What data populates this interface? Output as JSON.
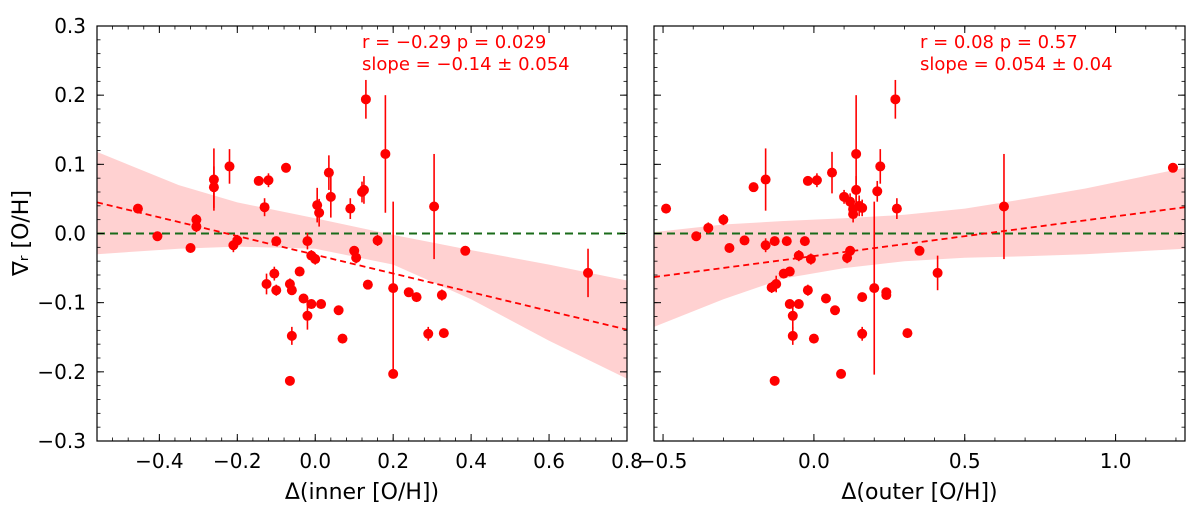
{
  "figure": {
    "ylabel": "∇ᵣ [O/H]"
  },
  "chart_data": [
    {
      "type": "scatter",
      "xlabel": "Δ(inner [O/H])",
      "ylabel": "∇ᵣ [O/H]",
      "xlim": [
        -0.56,
        0.8
      ],
      "ylim": [
        -0.3,
        0.3
      ],
      "xticks": [
        -0.4,
        -0.2,
        0.0,
        0.2,
        0.4,
        0.6,
        0.8
      ],
      "xtick_labels": [
        "−0.4",
        "−0.2",
        "0.0",
        "0.2",
        "0.4",
        "0.6",
        "0.8"
      ],
      "yticks": [
        -0.3,
        -0.2,
        -0.1,
        0.0,
        0.1,
        0.2,
        0.3
      ],
      "ytick_labels": [
        "−0.3",
        "−0.2",
        "−0.1",
        "0.0",
        "0.1",
        "0.2",
        "0.3"
      ],
      "annotation_line1": "r = −0.29  p = 0.029",
      "annotation_line2": "slope = −0.14 ± 0.054",
      "fit": {
        "x": [
          -0.56,
          0.8
        ],
        "y": [
          0.045,
          -0.139
        ]
      },
      "band": {
        "x": [
          -0.56,
          -0.35,
          -0.2,
          0.0,
          0.2,
          0.4,
          0.6,
          0.8
        ],
        "upper": [
          0.118,
          0.07,
          0.045,
          0.022,
          -0.002,
          -0.024,
          -0.045,
          -0.068
        ],
        "lower": [
          -0.03,
          -0.022,
          -0.019,
          -0.022,
          -0.045,
          -0.095,
          -0.155,
          -0.21
        ]
      },
      "points": [
        {
          "x": -0.455,
          "y": 0.036,
          "err": 0.005
        },
        {
          "x": -0.405,
          "y": -0.004,
          "err": 0.004
        },
        {
          "x": -0.32,
          "y": -0.021,
          "err": 0.006
        },
        {
          "x": -0.305,
          "y": 0.02,
          "err": 0.008
        },
        {
          "x": -0.305,
          "y": 0.01,
          "err": 0.008
        },
        {
          "x": -0.26,
          "y": 0.078,
          "err": 0.045
        },
        {
          "x": -0.26,
          "y": 0.067,
          "err": 0.03
        },
        {
          "x": -0.22,
          "y": 0.097,
          "err": 0.025
        },
        {
          "x": -0.21,
          "y": -0.017,
          "err": 0.01
        },
        {
          "x": -0.2,
          "y": -0.01,
          "err": 0.008
        },
        {
          "x": -0.145,
          "y": 0.076,
          "err": 0.005
        },
        {
          "x": -0.13,
          "y": 0.038,
          "err": 0.013
        },
        {
          "x": -0.125,
          "y": -0.073,
          "err": 0.015
        },
        {
          "x": -0.12,
          "y": 0.077,
          "err": 0.01
        },
        {
          "x": -0.105,
          "y": -0.058,
          "err": 0.01
        },
        {
          "x": -0.1,
          "y": -0.082,
          "err": 0.008
        },
        {
          "x": -0.1,
          "y": -0.011,
          "err": 0.005
        },
        {
          "x": -0.075,
          "y": 0.095,
          "err": 0.007
        },
        {
          "x": -0.065,
          "y": -0.073,
          "err": 0.008
        },
        {
          "x": -0.06,
          "y": -0.082,
          "err": 0.005
        },
        {
          "x": -0.06,
          "y": -0.148,
          "err": 0.013
        },
        {
          "x": -0.065,
          "y": -0.213,
          "err": 0.004
        },
        {
          "x": -0.04,
          "y": -0.055,
          "err": 0.005
        },
        {
          "x": -0.03,
          "y": -0.094,
          "err": 0.005
        },
        {
          "x": -0.02,
          "y": -0.119,
          "err": 0.02
        },
        {
          "x": -0.02,
          "y": -0.011,
          "err": 0.012
        },
        {
          "x": -0.01,
          "y": -0.032,
          "err": 0.008
        },
        {
          "x": -0.01,
          "y": -0.102,
          "err": 0.005
        },
        {
          "x": 0.0,
          "y": -0.037,
          "err": 0.008
        },
        {
          "x": 0.005,
          "y": 0.041,
          "err": 0.025
        },
        {
          "x": 0.01,
          "y": 0.03,
          "err": 0.02
        },
        {
          "x": 0.015,
          "y": -0.102,
          "err": 0.005
        },
        {
          "x": 0.035,
          "y": 0.088,
          "err": 0.025
        },
        {
          "x": 0.04,
          "y": 0.053,
          "err": 0.03
        },
        {
          "x": 0.06,
          "y": -0.111,
          "err": 0.005
        },
        {
          "x": 0.07,
          "y": -0.152,
          "err": 0.005
        },
        {
          "x": 0.09,
          "y": 0.036,
          "err": 0.015
        },
        {
          "x": 0.1,
          "y": -0.025,
          "err": 0.005
        },
        {
          "x": 0.105,
          "y": -0.035,
          "err": 0.008
        },
        {
          "x": 0.12,
          "y": 0.06,
          "err": 0.015
        },
        {
          "x": 0.125,
          "y": 0.063,
          "err": 0.02
        },
        {
          "x": 0.13,
          "y": 0.194,
          "err": 0.028
        },
        {
          "x": 0.135,
          "y": -0.074,
          "err": 0.005
        },
        {
          "x": 0.16,
          "y": -0.01,
          "err": 0.008
        },
        {
          "x": 0.18,
          "y": 0.115,
          "err": 0.085
        },
        {
          "x": 0.2,
          "y": -0.079,
          "err": 0.125
        },
        {
          "x": 0.2,
          "y": -0.203,
          "err": 0.005
        },
        {
          "x": 0.24,
          "y": -0.085,
          "err": 0.005
        },
        {
          "x": 0.26,
          "y": -0.092,
          "err": 0.005
        },
        {
          "x": 0.29,
          "y": -0.145,
          "err": 0.01
        },
        {
          "x": 0.305,
          "y": 0.039,
          "err": 0.076
        },
        {
          "x": 0.325,
          "y": -0.089,
          "err": 0.008
        },
        {
          "x": 0.33,
          "y": -0.144,
          "err": 0.005
        },
        {
          "x": 0.385,
          "y": -0.025,
          "err": 0.005
        },
        {
          "x": 0.7,
          "y": -0.057,
          "err": 0.035
        }
      ]
    },
    {
      "type": "scatter",
      "xlabel": "Δ(outer [O/H])",
      "ylabel": "",
      "xlim": [
        -0.53,
        1.23
      ],
      "ylim": [
        -0.3,
        0.3
      ],
      "xticks": [
        -0.5,
        0.0,
        0.5,
        1.0
      ],
      "xtick_labels": [
        "−0.5",
        "0.0",
        "0.5",
        "1.0"
      ],
      "yticks": [
        -0.3,
        -0.2,
        -0.1,
        0.0,
        0.1,
        0.2,
        0.3
      ],
      "ytick_labels": [],
      "annotation_line1": "r = 0.08  p = 0.57",
      "annotation_line2": "slope = 0.054 ± 0.04",
      "fit": {
        "x": [
          -0.53,
          1.23
        ],
        "y": [
          -0.063,
          0.038
        ]
      },
      "band": {
        "x": [
          -0.53,
          -0.3,
          -0.1,
          0.1,
          0.3,
          0.5,
          0.7,
          0.9,
          1.23
        ],
        "upper": [
          0.002,
          0.013,
          0.018,
          0.022,
          0.027,
          0.036,
          0.05,
          0.065,
          0.095
        ],
        "lower": [
          -0.135,
          -0.095,
          -0.065,
          -0.05,
          -0.04,
          -0.035,
          -0.033,
          -0.03,
          -0.022
        ]
      },
      "points": [
        {
          "x": -0.49,
          "y": 0.036,
          "err": 0.005
        },
        {
          "x": -0.39,
          "y": -0.004,
          "err": 0.004
        },
        {
          "x": -0.35,
          "y": 0.008,
          "err": 0.008
        },
        {
          "x": -0.3,
          "y": 0.02,
          "err": 0.008
        },
        {
          "x": -0.28,
          "y": -0.021,
          "err": 0.006
        },
        {
          "x": -0.23,
          "y": -0.01,
          "err": 0.005
        },
        {
          "x": -0.2,
          "y": 0.067,
          "err": 0.005
        },
        {
          "x": -0.16,
          "y": 0.078,
          "err": 0.045
        },
        {
          "x": -0.16,
          "y": -0.017,
          "err": 0.01
        },
        {
          "x": -0.14,
          "y": -0.078,
          "err": 0.008
        },
        {
          "x": -0.13,
          "y": -0.011,
          "err": 0.006
        },
        {
          "x": -0.13,
          "y": -0.213,
          "err": 0.004
        },
        {
          "x": -0.125,
          "y": -0.073,
          "err": 0.012
        },
        {
          "x": -0.1,
          "y": -0.058,
          "err": 0.005
        },
        {
          "x": -0.09,
          "y": -0.011,
          "err": 0.005
        },
        {
          "x": -0.08,
          "y": -0.055,
          "err": 0.005
        },
        {
          "x": -0.08,
          "y": -0.102,
          "err": 0.005
        },
        {
          "x": -0.07,
          "y": -0.119,
          "err": 0.02
        },
        {
          "x": -0.07,
          "y": -0.148,
          "err": 0.013
        },
        {
          "x": -0.05,
          "y": -0.032,
          "err": 0.008
        },
        {
          "x": -0.05,
          "y": -0.102,
          "err": 0.005
        },
        {
          "x": -0.03,
          "y": -0.011,
          "err": 0.006
        },
        {
          "x": -0.02,
          "y": -0.082,
          "err": 0.008
        },
        {
          "x": -0.01,
          "y": -0.037,
          "err": 0.008
        },
        {
          "x": 0.0,
          "y": -0.152,
          "err": 0.005
        },
        {
          "x": -0.02,
          "y": 0.076,
          "err": 0.005
        },
        {
          "x": 0.01,
          "y": 0.077,
          "err": 0.01
        },
        {
          "x": 0.04,
          "y": -0.094,
          "err": 0.005
        },
        {
          "x": 0.06,
          "y": 0.088,
          "err": 0.03
        },
        {
          "x": 0.07,
          "y": -0.111,
          "err": 0.005
        },
        {
          "x": 0.09,
          "y": -0.203,
          "err": 0.005
        },
        {
          "x": 0.1,
          "y": 0.053,
          "err": 0.01
        },
        {
          "x": 0.11,
          "y": -0.035,
          "err": 0.008
        },
        {
          "x": 0.12,
          "y": -0.025,
          "err": 0.005
        },
        {
          "x": 0.12,
          "y": 0.046,
          "err": 0.012
        },
        {
          "x": 0.13,
          "y": 0.028,
          "err": 0.012
        },
        {
          "x": 0.13,
          "y": 0.035,
          "err": 0.012
        },
        {
          "x": 0.14,
          "y": 0.115,
          "err": 0.085
        },
        {
          "x": 0.14,
          "y": 0.063,
          "err": 0.02
        },
        {
          "x": 0.15,
          "y": 0.04,
          "err": 0.015
        },
        {
          "x": 0.16,
          "y": -0.145,
          "err": 0.01
        },
        {
          "x": 0.16,
          "y": -0.092,
          "err": 0.005
        },
        {
          "x": 0.16,
          "y": 0.037,
          "err": 0.012
        },
        {
          "x": 0.2,
          "y": -0.079,
          "err": 0.125
        },
        {
          "x": 0.21,
          "y": 0.061,
          "err": 0.015
        },
        {
          "x": 0.22,
          "y": 0.097,
          "err": 0.025
        },
        {
          "x": 0.24,
          "y": -0.085,
          "err": 0.005
        },
        {
          "x": 0.24,
          "y": -0.089,
          "err": 0.005
        },
        {
          "x": 0.27,
          "y": 0.194,
          "err": 0.028
        },
        {
          "x": 0.275,
          "y": 0.036,
          "err": 0.015
        },
        {
          "x": 0.31,
          "y": -0.144,
          "err": 0.005
        },
        {
          "x": 0.35,
          "y": -0.025,
          "err": 0.005
        },
        {
          "x": 0.41,
          "y": -0.057,
          "err": 0.025
        },
        {
          "x": 0.63,
          "y": 0.039,
          "err": 0.076
        },
        {
          "x": 1.19,
          "y": 0.095,
          "err": 0.006
        }
      ]
    }
  ]
}
